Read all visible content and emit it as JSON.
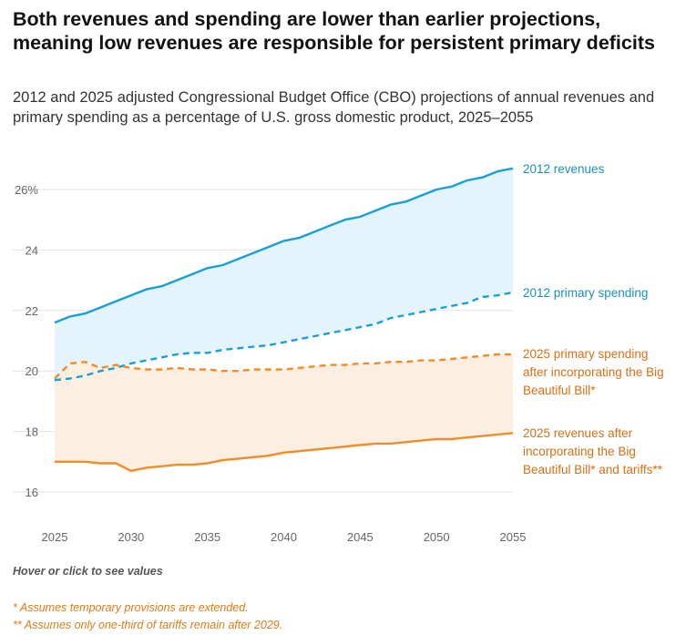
{
  "title": "Both revenues and spending are lower than earlier projections, meaning low revenues are responsible for persistent primary deficits",
  "subtitle": "2012 and 2025 adjusted Congressional Budget Office (CBO) projections of annual revenues and primary spending as a percentage of U.S. gross domestic product, 2025–2055",
  "note": "Hover or click to see values",
  "footnotes": [
    "* Assumes temporary provisions are extended.",
    "** Assumes only one-third of tariffs remain after 2029."
  ],
  "colors": {
    "blue": "#1aa0d4",
    "blue_label": "#1a8fc2",
    "orange": "#f28c28",
    "orange_label": "#d96f12",
    "blue_fill": "#e3f4fc",
    "orange_fill": "#fdeee2",
    "grid": "#e2e2e2",
    "tick": "#666666"
  },
  "chart_data": {
    "type": "line",
    "x": [
      2025,
      2026,
      2027,
      2028,
      2029,
      2030,
      2031,
      2032,
      2033,
      2034,
      2035,
      2036,
      2037,
      2038,
      2039,
      2040,
      2041,
      2042,
      2043,
      2044,
      2045,
      2046,
      2047,
      2048,
      2049,
      2050,
      2051,
      2052,
      2053,
      2054,
      2055
    ],
    "ylim": [
      16,
      27.2
    ],
    "yticks": [
      16,
      18,
      20,
      22,
      24,
      26
    ],
    "ytick_labels": [
      "16",
      "18",
      "20",
      "22",
      "24",
      "26%"
    ],
    "xticks": [
      2025,
      2030,
      2035,
      2040,
      2045,
      2050,
      2055
    ],
    "xtick_labels": [
      "2025",
      "2030",
      "2035",
      "2040",
      "2045",
      "2050",
      "2055"
    ],
    "grid": true,
    "series": [
      {
        "name": "2012 revenues",
        "style": "solid",
        "color": "#1aa0d4",
        "label_lines": [
          "2012 revenues"
        ],
        "values": [
          21.6,
          21.8,
          21.9,
          22.1,
          22.3,
          22.5,
          22.7,
          22.8,
          23.0,
          23.2,
          23.4,
          23.5,
          23.7,
          23.9,
          24.1,
          24.3,
          24.4,
          24.6,
          24.8,
          25.0,
          25.1,
          25.3,
          25.5,
          25.6,
          25.8,
          26.0,
          26.1,
          26.3,
          26.4,
          26.6,
          26.7
        ]
      },
      {
        "name": "2012 primary spending",
        "style": "dashed",
        "color": "#1aa0d4",
        "label_lines": [
          "2012 primary spending"
        ],
        "values": [
          19.7,
          19.75,
          19.85,
          20.0,
          20.1,
          20.25,
          20.35,
          20.45,
          20.55,
          20.6,
          20.6,
          20.7,
          20.75,
          20.8,
          20.85,
          20.95,
          21.05,
          21.15,
          21.25,
          21.35,
          21.45,
          21.55,
          21.75,
          21.85,
          21.95,
          22.05,
          22.15,
          22.25,
          22.45,
          22.5,
          22.6
        ]
      },
      {
        "name": "2025 primary spending after incorporating the Big Beautiful Bill*",
        "style": "dashed",
        "color": "#f28c28",
        "label_lines": [
          "2025 primary spending",
          "after incorporating the Big",
          "Beautiful Bill*"
        ],
        "values": [
          19.75,
          20.25,
          20.3,
          20.1,
          20.2,
          20.1,
          20.05,
          20.05,
          20.1,
          20.05,
          20.05,
          20.0,
          20.0,
          20.05,
          20.05,
          20.05,
          20.1,
          20.15,
          20.2,
          20.2,
          20.25,
          20.25,
          20.3,
          20.3,
          20.35,
          20.35,
          20.4,
          20.45,
          20.5,
          20.55,
          20.55
        ]
      },
      {
        "name": "2025 revenues after incorporating the Big Beautiful Bill* and tariffs**",
        "style": "solid",
        "color": "#f28c28",
        "label_lines": [
          "2025 revenues after",
          "incorporating the Big",
          "Beautiful Bill* and tariffs**"
        ],
        "values": [
          17.0,
          17.0,
          17.0,
          16.95,
          16.95,
          16.7,
          16.8,
          16.85,
          16.9,
          16.9,
          16.95,
          17.05,
          17.1,
          17.15,
          17.2,
          17.3,
          17.35,
          17.4,
          17.45,
          17.5,
          17.55,
          17.6,
          17.6,
          17.65,
          17.7,
          17.75,
          17.75,
          17.8,
          17.85,
          17.9,
          17.95
        ]
      }
    ]
  }
}
